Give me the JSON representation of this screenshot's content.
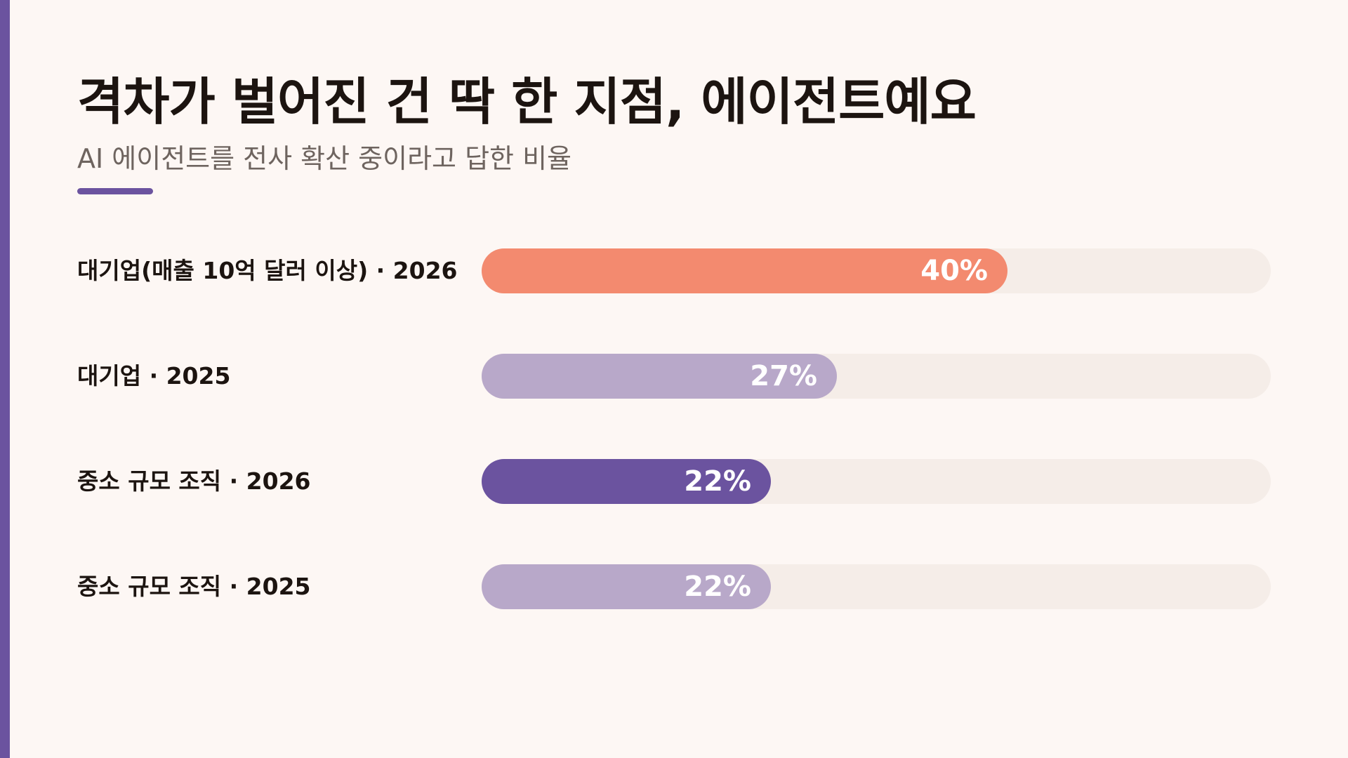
{
  "slide": {
    "title": "격차가 벌어진 건 딱 한 지점, 에이전트예요",
    "subtitle": "AI 에이전트를 전사 확산 중이라고 답한 비율",
    "accent_color": "#6b539f"
  },
  "chart_data": {
    "type": "bar",
    "orientation": "horizontal",
    "title": "격차가 벌어진 건 딱 한 지점, 에이전트예요",
    "subtitle": "AI 에이전트를 전사 확산 중이라고 답한 비율",
    "xlabel": "",
    "ylabel": "",
    "xlim": [
      0,
      60
    ],
    "grid": false,
    "legend": "none",
    "unit": "%",
    "track_color": "#f5ede8",
    "categories": [
      "대기업(매출 10억 달러 이상) · 2026",
      "대기업 · 2025",
      "중소 규모 조직 · 2026",
      "중소 규모 조직 · 2025"
    ],
    "values": [
      40,
      27,
      22,
      22
    ],
    "value_labels": [
      "40%",
      "27%",
      "22%",
      "22%"
    ],
    "colors": [
      "#f38a6f",
      "#b8a8c9",
      "#6b539f",
      "#b8a8c9"
    ]
  }
}
